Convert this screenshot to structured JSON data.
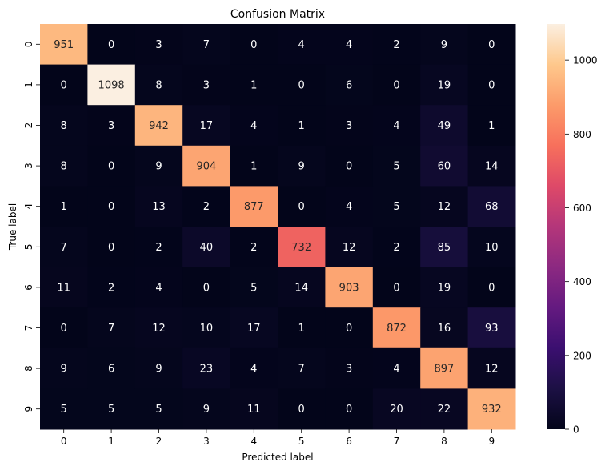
{
  "chart_data": {
    "type": "heatmap",
    "title": "Confusion Matrix",
    "xlabel": "Predicted label",
    "ylabel": "True label",
    "x_categories": [
      "0",
      "1",
      "2",
      "3",
      "4",
      "5",
      "6",
      "7",
      "8",
      "9"
    ],
    "y_categories": [
      "0",
      "1",
      "2",
      "3",
      "4",
      "5",
      "6",
      "7",
      "8",
      "9"
    ],
    "values": [
      [
        951,
        0,
        3,
        7,
        0,
        4,
        4,
        2,
        9,
        0
      ],
      [
        0,
        1098,
        8,
        3,
        1,
        0,
        6,
        0,
        19,
        0
      ],
      [
        8,
        3,
        942,
        17,
        4,
        1,
        3,
        4,
        49,
        1
      ],
      [
        8,
        0,
        9,
        904,
        1,
        9,
        0,
        5,
        60,
        14
      ],
      [
        1,
        0,
        13,
        2,
        877,
        0,
        4,
        5,
        12,
        68
      ],
      [
        7,
        0,
        2,
        40,
        2,
        732,
        12,
        2,
        85,
        10
      ],
      [
        11,
        2,
        4,
        0,
        5,
        14,
        903,
        0,
        19,
        0
      ],
      [
        0,
        7,
        12,
        10,
        17,
        1,
        0,
        872,
        16,
        93
      ],
      [
        9,
        6,
        9,
        23,
        4,
        7,
        3,
        4,
        897,
        12
      ],
      [
        5,
        5,
        5,
        9,
        11,
        0,
        0,
        20,
        22,
        932
      ]
    ],
    "colorbar": {
      "min": 0,
      "max": 1098,
      "ticks": [
        0,
        200,
        400,
        600,
        800,
        1000
      ],
      "colormap": "rocket"
    },
    "grid": false,
    "legend": "right"
  }
}
